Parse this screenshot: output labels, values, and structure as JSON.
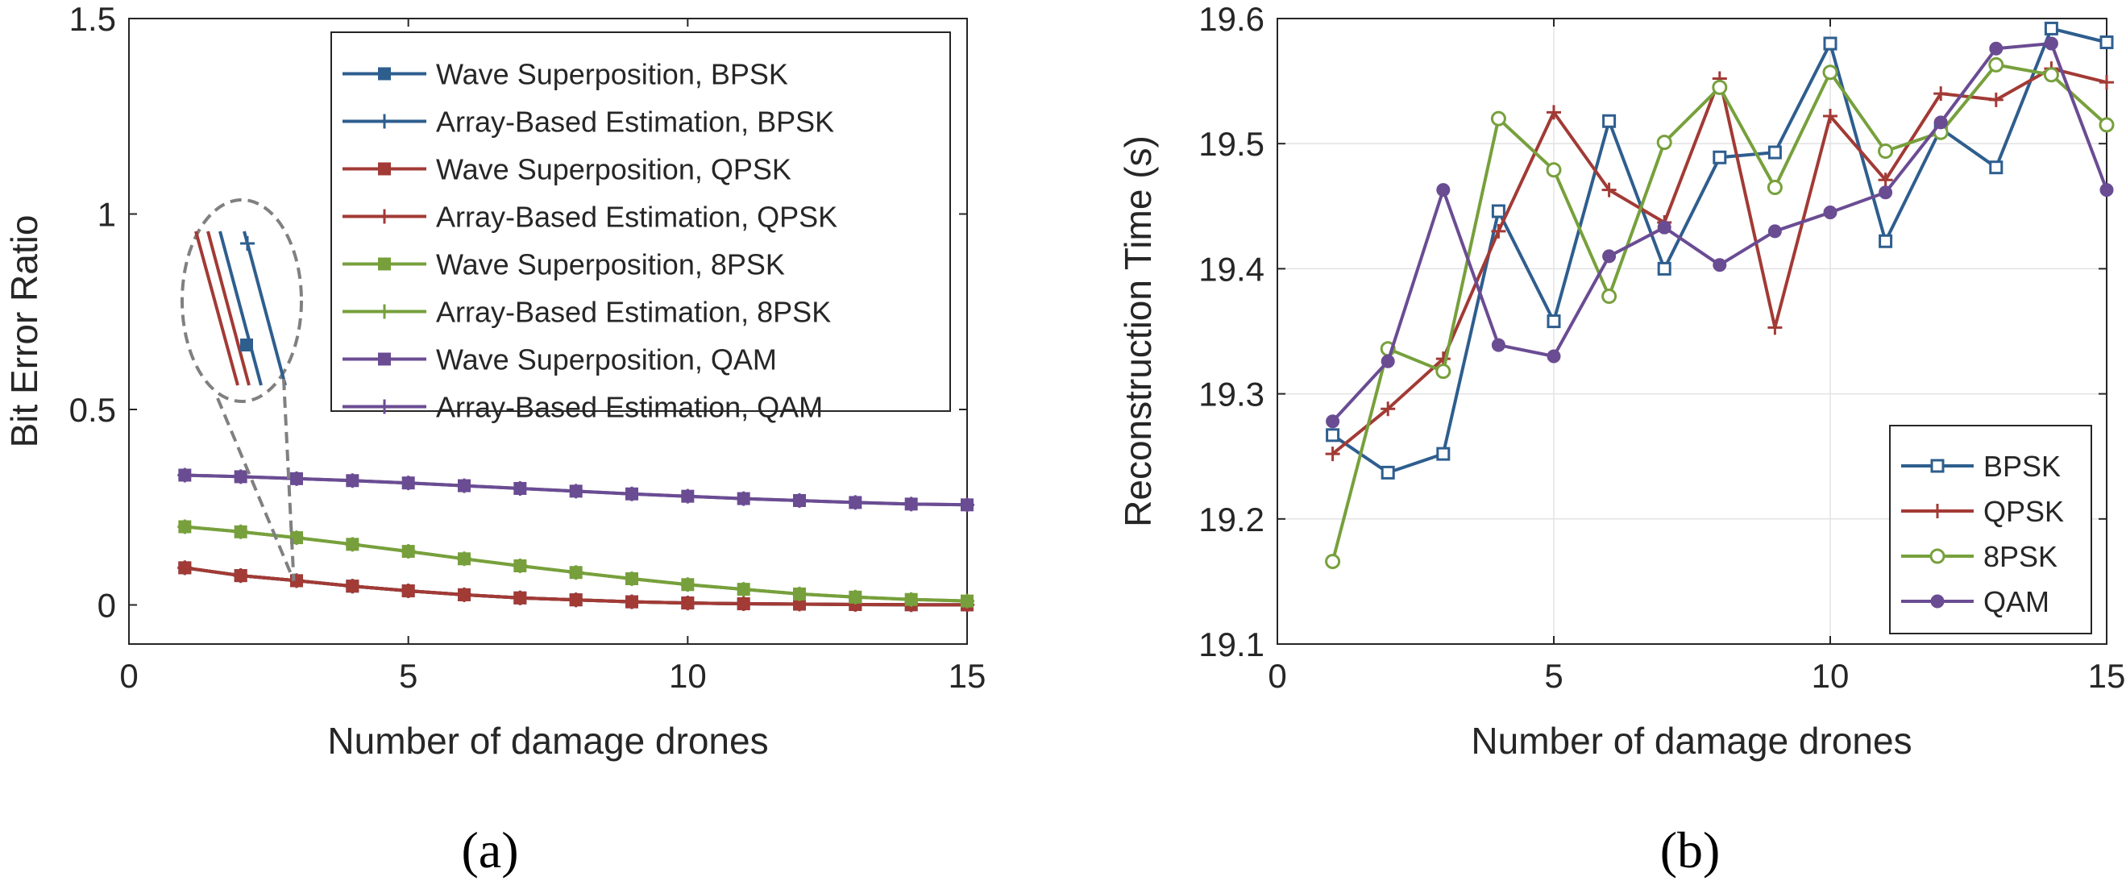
{
  "panels": [
    {
      "panel_label": "(a)",
      "chart_data": {
        "type": "line",
        "title": "",
        "xlabel": "Number of damage drones",
        "ylabel": "Bit Error Ratio",
        "xlim": [
          0,
          15
        ],
        "ylim": [
          -0.1,
          1.5
        ],
        "xticks": [
          0,
          5,
          10,
          15
        ],
        "xtick_labels": [
          "0",
          "5",
          "10",
          "15"
        ],
        "yticks": [
          0,
          0.5,
          1,
          1.5
        ],
        "ytick_labels": [
          "0",
          "0.5",
          "1",
          "1.5"
        ],
        "grid": false,
        "legend_position": "top-right",
        "x": [
          1,
          2,
          3,
          4,
          5,
          6,
          7,
          8,
          9,
          10,
          11,
          12,
          13,
          14,
          15
        ],
        "series": [
          {
            "name": "Wave Superposition, BPSK",
            "color": "#2E5E8E",
            "marker": "square",
            "values": [
              0.095,
              0.075,
              0.062,
              0.048,
              0.036,
              0.026,
              0.018,
              0.013,
              0.008,
              0.005,
              0.003,
              0.002,
              0.001,
              0.0005,
              0.0002
            ]
          },
          {
            "name": "Array-Based Estimation, BPSK",
            "color": "#2E5E8E",
            "marker": "plus",
            "values": [
              0.095,
              0.075,
              0.062,
              0.048,
              0.036,
              0.026,
              0.018,
              0.013,
              0.008,
              0.005,
              0.003,
              0.002,
              0.001,
              0.0005,
              0.0002
            ]
          },
          {
            "name": "Wave Superposition, QPSK",
            "color": "#A23A35",
            "marker": "square",
            "values": [
              0.095,
              0.075,
              0.062,
              0.048,
              0.036,
              0.026,
              0.018,
              0.013,
              0.008,
              0.005,
              0.003,
              0.002,
              0.001,
              0.0005,
              0.0002
            ]
          },
          {
            "name": "Array-Based Estimation, QPSK",
            "color": "#A23A35",
            "marker": "plus",
            "values": [
              0.095,
              0.075,
              0.062,
              0.048,
              0.036,
              0.026,
              0.018,
              0.013,
              0.008,
              0.005,
              0.003,
              0.002,
              0.001,
              0.0005,
              0.0002
            ]
          },
          {
            "name": "Wave Superposition, 8PSK",
            "color": "#77A03C",
            "marker": "square",
            "values": [
              0.2,
              0.187,
              0.172,
              0.155,
              0.137,
              0.118,
              0.1,
              0.083,
              0.067,
              0.052,
              0.04,
              0.028,
              0.02,
              0.014,
              0.01
            ]
          },
          {
            "name": "Array-Based Estimation, 8PSK",
            "color": "#77A03C",
            "marker": "plus",
            "values": [
              0.2,
              0.187,
              0.172,
              0.155,
              0.137,
              0.118,
              0.1,
              0.083,
              0.067,
              0.052,
              0.04,
              0.028,
              0.02,
              0.014,
              0.01
            ]
          },
          {
            "name": "Wave Superposition, QAM",
            "color": "#6A4C93",
            "marker": "square",
            "values": [
              0.332,
              0.328,
              0.323,
              0.318,
              0.312,
              0.305,
              0.298,
              0.291,
              0.284,
              0.278,
              0.272,
              0.267,
              0.262,
              0.258,
              0.256
            ]
          },
          {
            "name": "Array-Based Estimation, QAM",
            "color": "#6A4C93",
            "marker": "plus",
            "values": [
              0.332,
              0.328,
              0.323,
              0.318,
              0.312,
              0.305,
              0.298,
              0.291,
              0.284,
              0.278,
              0.272,
              0.267,
              0.262,
              0.258,
              0.256
            ]
          }
        ],
        "annotations": [
          {
            "kind": "zoom-ellipse",
            "description": "dashed ellipse with magnified BPSK/QPSK curves near x≈1–3, linked by dashed lines to the data at x≈3"
          }
        ]
      }
    },
    {
      "panel_label": "(b)",
      "chart_data": {
        "type": "line",
        "title": "",
        "xlabel": "Number of damage drones",
        "ylabel": "Reconstruction Time (s)",
        "xlim": [
          0,
          15
        ],
        "ylim": [
          19.1,
          19.6
        ],
        "xticks": [
          0,
          5,
          10,
          15
        ],
        "xtick_labels": [
          "0",
          "5",
          "10",
          "15"
        ],
        "yticks": [
          19.1,
          19.2,
          19.3,
          19.4,
          19.5,
          19.6
        ],
        "ytick_labels": [
          "19.1",
          "19.2",
          "19.3",
          "19.4",
          "19.5",
          "19.6"
        ],
        "grid": true,
        "legend_position": "bottom-right",
        "x": [
          1,
          2,
          3,
          4,
          5,
          6,
          7,
          8,
          9,
          10,
          11,
          12,
          13,
          14,
          15
        ],
        "series": [
          {
            "name": "BPSK",
            "color": "#2E5E8E",
            "marker": "square",
            "values": [
              19.267,
              19.237,
              19.252,
              19.446,
              19.358,
              19.518,
              19.4,
              19.489,
              19.493,
              19.58,
              19.422,
              19.512,
              19.481,
              19.592,
              19.581
            ]
          },
          {
            "name": "QPSK",
            "color": "#A23A35",
            "marker": "plus",
            "values": [
              19.252,
              19.288,
              19.328,
              19.43,
              19.525,
              19.463,
              19.437,
              19.552,
              19.353,
              19.522,
              19.471,
              19.54,
              19.535,
              19.56,
              19.549
            ]
          },
          {
            "name": "8PSK",
            "color": "#77A03C",
            "marker": "circle",
            "values": [
              19.166,
              19.336,
              19.318,
              19.52,
              19.479,
              19.378,
              19.501,
              19.545,
              19.465,
              19.557,
              19.494,
              19.509,
              19.563,
              19.555,
              19.515
            ]
          },
          {
            "name": "QAM",
            "color": "#6A4C93",
            "marker": "dot",
            "values": [
              19.278,
              19.326,
              19.463,
              19.339,
              19.33,
              19.41,
              19.433,
              19.403,
              19.43,
              19.445,
              19.461,
              19.517,
              19.576,
              19.58,
              19.463
            ]
          }
        ]
      }
    }
  ]
}
